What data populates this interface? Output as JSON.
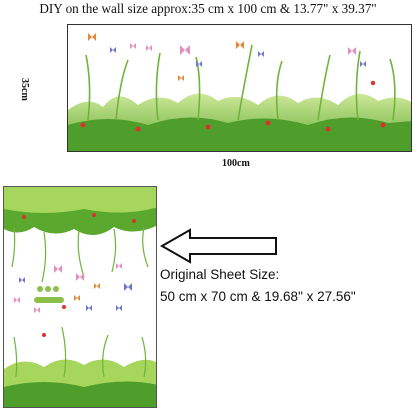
{
  "header": {
    "caption": "DIY on the wall size approx:35 cm x 100 cm & 13.77\" x 39.37\""
  },
  "wall_preview": {
    "height_label": "35cm",
    "width_label": "100cm"
  },
  "sheet_info": {
    "title": "Original Sheet Size:",
    "size": "50 cm x 70 cm & 19.68\" x 27.56\""
  },
  "colors": {
    "grass_dark": "#4f9d2a",
    "grass_light": "#a6d65c",
    "flower_red": "#d8342c",
    "butterfly_pink": "#e58fc0",
    "butterfly_blue": "#6f78c8",
    "butterfly_orange": "#e08a3a"
  }
}
